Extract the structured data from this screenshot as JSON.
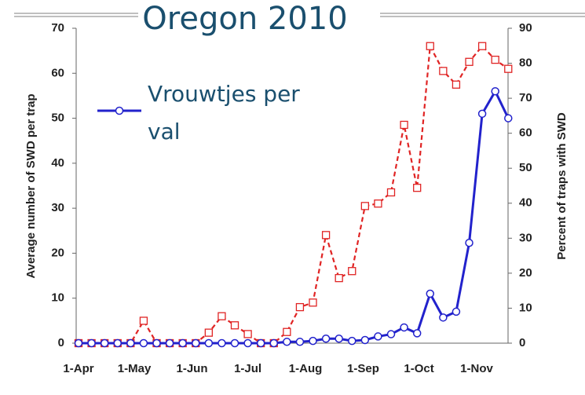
{
  "chart_data": {
    "type": "line",
    "title": "Oregon 2010",
    "y_label": "Average number of SWD per trap",
    "y2_label": "Percent of traps with SWD",
    "x": [
      "1-Apr",
      "8-Apr",
      "15-Apr",
      "22-Apr",
      "29-Apr",
      "6-May",
      "13-May",
      "20-May",
      "27-May",
      "3-Jun",
      "10-Jun",
      "17-Jun",
      "24-Jun",
      "1-Jul",
      "8-Jul",
      "15-Jul",
      "22-Jul",
      "29-Jul",
      "5-Aug",
      "12-Aug",
      "19-Aug",
      "26-Aug",
      "2-Sep",
      "9-Sep",
      "16-Sep",
      "23-Sep",
      "30-Sep",
      "7-Oct",
      "14-Oct",
      "21-Oct",
      "28-Oct",
      "4-Nov",
      "11-Nov",
      "18-Nov"
    ],
    "xticks": [
      "1-Apr",
      "1-May",
      "1-Jun",
      "1-Jul",
      "1-Aug",
      "1-Sep",
      "1-Oct",
      "1-Nov"
    ],
    "ylim": [
      0,
      70
    ],
    "yticks": [
      0,
      10,
      20,
      30,
      40,
      50,
      60,
      70
    ],
    "y2lim": [
      0,
      90
    ],
    "y2ticks": [
      0,
      10,
      20,
      30,
      40,
      50,
      60,
      70,
      80,
      90
    ],
    "series": [
      {
        "name": "Vrouwtjes per val",
        "color": "#2222cc",
        "marker": "circle",
        "values": [
          0,
          0,
          0,
          0,
          0,
          0,
          0,
          0,
          0,
          0,
          0,
          0,
          0,
          0,
          0,
          0,
          0.3,
          0.3,
          0.5,
          1,
          1,
          0.5,
          0.7,
          1.5,
          2,
          3.5,
          2.2,
          11,
          5.7,
          7,
          22.3,
          51,
          56,
          50
        ]
      },
      {
        "color": "#e02424",
        "marker": "square",
        "dashed": true,
        "axis": "y2",
        "values": [
          0,
          0,
          0,
          0,
          0,
          6.4,
          0,
          0,
          0,
          0,
          3,
          7.7,
          5.1,
          2.6,
          0,
          0,
          3.2,
          10.3,
          11.6,
          30.9,
          18.6,
          20.6,
          39.2,
          39.9,
          43.1,
          62.4,
          44.4,
          84.9,
          77.8,
          73.9,
          80.4,
          84.9,
          81,
          78.4
        ]
      }
    ]
  }
}
